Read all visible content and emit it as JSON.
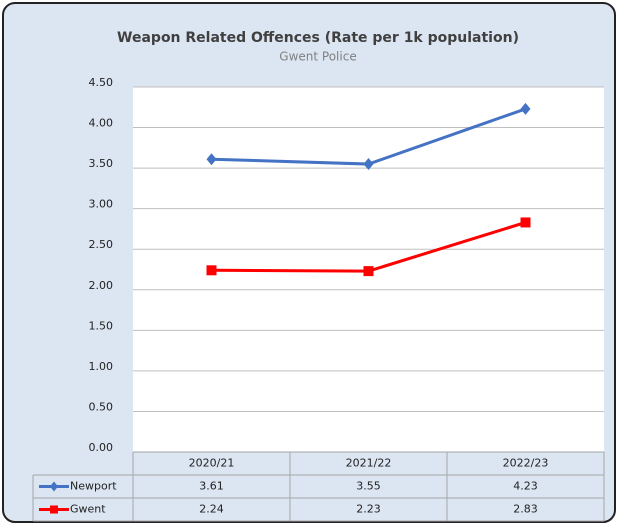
{
  "chart_data": {
    "type": "line",
    "title": "Weapon Related Offences (Rate per 1k population)",
    "subtitle": "Gwent Police",
    "categories": [
      "2020/21",
      "2021/22",
      "2022/23"
    ],
    "series": [
      {
        "name": "Newport",
        "color": "#4472c4",
        "marker": "diamond",
        "values": [
          3.61,
          3.55,
          4.23
        ]
      },
      {
        "name": "Gwent",
        "color": "#ff0000",
        "marker": "square",
        "values": [
          2.24,
          2.23,
          2.83
        ]
      }
    ],
    "ylim": [
      0,
      4.5
    ],
    "yticks": [
      {
        "value": 0,
        "label": "0.00"
      },
      {
        "value": 0.5,
        "label": "0.50"
      },
      {
        "value": 1,
        "label": "1.00"
      },
      {
        "value": 1.5,
        "label": "1.50"
      },
      {
        "value": 2,
        "label": "2.00"
      },
      {
        "value": 2.5,
        "label": "2.50"
      },
      {
        "value": 3,
        "label": "3.00"
      },
      {
        "value": 3.5,
        "label": "3.50"
      },
      {
        "value": 4,
        "label": "4.00"
      },
      {
        "value": 4.5,
        "label": "4.50"
      }
    ],
    "grid": true
  }
}
